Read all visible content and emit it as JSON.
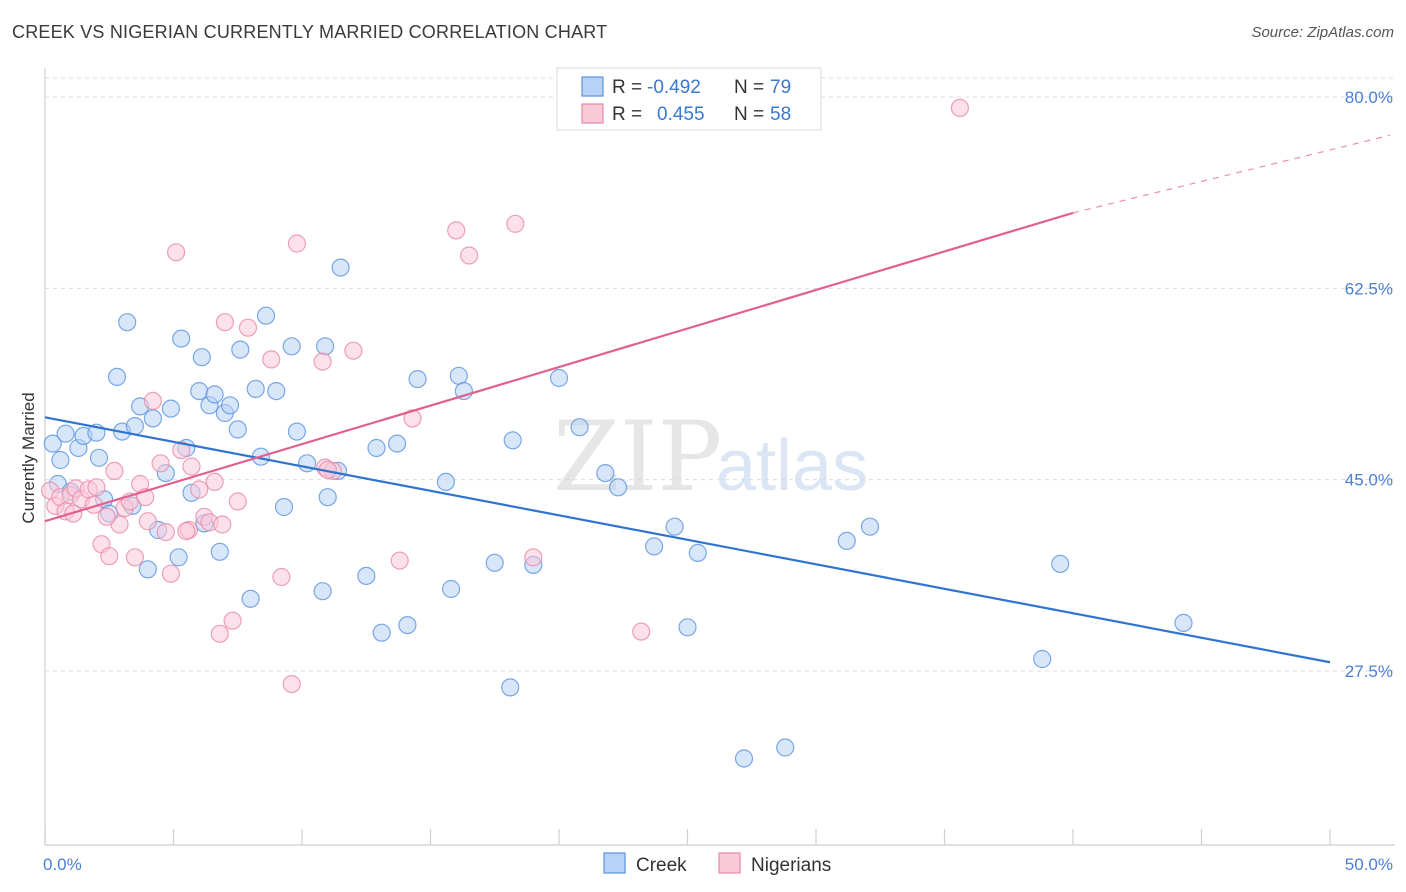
{
  "title": "CREEK VS NIGERIAN CURRENTLY MARRIED CORRELATION CHART",
  "source": "Source: ZipAtlas.com",
  "watermark": {
    "zip": "ZIP",
    "atlas": "atlas"
  },
  "colors": {
    "creek": "#5b93e0",
    "creek_fill": "#b8d2f5",
    "creek_line": "#2f74d0",
    "nigerian": "#e88aa8",
    "nigerian_fill": "#f9c9d8",
    "nigerian_line": "#e0618d"
  },
  "legend": {
    "rows": [
      {
        "r_label": "R = ",
        "r_value": "-0.492",
        "n_label": "N = ",
        "n_value": "79"
      },
      {
        "r_label": "R = ",
        "r_value": "0.455",
        "n_label": "N = ",
        "n_value": "58"
      }
    ]
  },
  "bottom_legend": [
    {
      "label": "Creek"
    },
    {
      "label": "Nigerians"
    }
  ],
  "chart_data": {
    "type": "scatter",
    "ylabel": "Currently Married",
    "xlabel": "",
    "xlim": [
      0,
      50
    ],
    "ylim": [
      10,
      82
    ],
    "x_tick_labels": [
      {
        "value": 0,
        "label": "0.0%"
      },
      {
        "value": 50,
        "label": "50.0%"
      }
    ],
    "y_tick_labels": [
      {
        "value": 27.5,
        "label": "27.5%"
      },
      {
        "value": 45.0,
        "label": "45.0%"
      },
      {
        "value": 62.5,
        "label": "62.5%"
      },
      {
        "value": 80.0,
        "label": "80.0%"
      }
    ],
    "series": [
      {
        "name": "Creek",
        "r": -0.492,
        "n": 79,
        "trend": {
          "x0": 0,
          "y0": 50.7,
          "x1": 50,
          "y1": 28.3
        },
        "points": [
          [
            0.3,
            48.3
          ],
          [
            0.6,
            46.8
          ],
          [
            0.8,
            49.2
          ],
          [
            1.3,
            47.9
          ],
          [
            1.5,
            49.0
          ],
          [
            2.0,
            49.3
          ],
          [
            2.1,
            47.0
          ],
          [
            2.3,
            43.2
          ],
          [
            2.5,
            41.9
          ],
          [
            2.8,
            54.4
          ],
          [
            3.0,
            49.4
          ],
          [
            3.2,
            59.4
          ],
          [
            3.5,
            49.9
          ],
          [
            3.7,
            51.7
          ],
          [
            4.0,
            36.8
          ],
          [
            4.2,
            50.6
          ],
          [
            4.4,
            40.4
          ],
          [
            4.7,
            45.6
          ],
          [
            4.9,
            51.5
          ],
          [
            5.2,
            37.9
          ],
          [
            5.3,
            57.9
          ],
          [
            5.5,
            47.9
          ],
          [
            5.7,
            43.8
          ],
          [
            6.0,
            53.1
          ],
          [
            6.1,
            56.2
          ],
          [
            6.4,
            51.8
          ],
          [
            6.6,
            52.8
          ],
          [
            6.8,
            38.4
          ],
          [
            7.0,
            51.1
          ],
          [
            7.2,
            51.8
          ],
          [
            7.5,
            49.6
          ],
          [
            7.6,
            56.9
          ],
          [
            8.0,
            34.1
          ],
          [
            8.2,
            53.3
          ],
          [
            8.4,
            47.1
          ],
          [
            8.6,
            60.0
          ],
          [
            9.0,
            53.1
          ],
          [
            9.6,
            57.2
          ],
          [
            9.8,
            49.4
          ],
          [
            10.2,
            46.5
          ],
          [
            10.8,
            34.8
          ],
          [
            10.9,
            57.2
          ],
          [
            11.0,
            43.4
          ],
          [
            11.4,
            45.8
          ],
          [
            11.5,
            64.4
          ],
          [
            12.5,
            36.2
          ],
          [
            12.9,
            47.9
          ],
          [
            13.1,
            31.0
          ],
          [
            13.7,
            48.3
          ],
          [
            14.1,
            31.7
          ],
          [
            14.5,
            54.2
          ],
          [
            15.6,
            44.8
          ],
          [
            15.8,
            35.0
          ],
          [
            16.1,
            54.5
          ],
          [
            16.3,
            53.1
          ],
          [
            17.5,
            37.4
          ],
          [
            18.1,
            26.0
          ],
          [
            18.2,
            48.6
          ],
          [
            19.0,
            37.2
          ],
          [
            20.0,
            54.3
          ],
          [
            20.8,
            49.8
          ],
          [
            21.8,
            45.6
          ],
          [
            22.3,
            44.3
          ],
          [
            23.7,
            38.9
          ],
          [
            24.5,
            40.7
          ],
          [
            25.0,
            31.5
          ],
          [
            25.4,
            38.3
          ],
          [
            27.2,
            19.5
          ],
          [
            28.8,
            20.5
          ],
          [
            31.2,
            39.4
          ],
          [
            32.1,
            40.7
          ],
          [
            38.8,
            28.6
          ],
          [
            39.5,
            37.3
          ],
          [
            44.3,
            31.9
          ],
          [
            0.5,
            44.6
          ],
          [
            1.0,
            43.9
          ],
          [
            3.4,
            42.6
          ],
          [
            6.2,
            41.0
          ],
          [
            9.3,
            42.5
          ]
        ]
      },
      {
        "name": "Nigerians",
        "r": 0.455,
        "n": 58,
        "trend": {
          "x0": 0,
          "y0": 41.2,
          "x1": 40,
          "y1": 69.4,
          "dash_to_x": 50,
          "dash_to_y": 76.5
        },
        "points": [
          [
            0.2,
            44.0
          ],
          [
            0.4,
            42.6
          ],
          [
            0.6,
            43.4
          ],
          [
            0.8,
            42.1
          ],
          [
            1.0,
            43.6
          ],
          [
            1.2,
            44.2
          ],
          [
            1.4,
            43.2
          ],
          [
            1.7,
            44.1
          ],
          [
            1.9,
            42.7
          ],
          [
            2.0,
            44.3
          ],
          [
            2.2,
            39.1
          ],
          [
            2.5,
            38.0
          ],
          [
            2.7,
            45.8
          ],
          [
            2.9,
            40.9
          ],
          [
            3.1,
            42.4
          ],
          [
            3.3,
            43.0
          ],
          [
            3.5,
            37.9
          ],
          [
            3.7,
            44.6
          ],
          [
            3.9,
            43.4
          ],
          [
            4.0,
            41.2
          ],
          [
            4.2,
            52.2
          ],
          [
            4.5,
            46.5
          ],
          [
            4.7,
            40.2
          ],
          [
            4.9,
            36.4
          ],
          [
            5.1,
            65.8
          ],
          [
            5.3,
            47.7
          ],
          [
            5.6,
            40.4
          ],
          [
            5.7,
            46.2
          ],
          [
            6.0,
            44.1
          ],
          [
            6.2,
            41.6
          ],
          [
            6.4,
            41.1
          ],
          [
            6.6,
            44.8
          ],
          [
            6.8,
            30.9
          ],
          [
            7.0,
            59.4
          ],
          [
            7.3,
            32.1
          ],
          [
            7.5,
            43.0
          ],
          [
            7.9,
            58.9
          ],
          [
            8.8,
            56.0
          ],
          [
            9.2,
            36.1
          ],
          [
            9.6,
            26.3
          ],
          [
            9.8,
            66.6
          ],
          [
            10.8,
            55.8
          ],
          [
            10.9,
            46.1
          ],
          [
            11.2,
            45.8
          ],
          [
            12.0,
            56.8
          ],
          [
            13.8,
            37.6
          ],
          [
            14.3,
            50.6
          ],
          [
            16.0,
            67.8
          ],
          [
            16.5,
            65.5
          ],
          [
            18.3,
            68.4
          ],
          [
            19.0,
            37.9
          ],
          [
            23.2,
            31.1
          ],
          [
            35.6,
            79.0
          ],
          [
            1.1,
            41.9
          ],
          [
            2.4,
            41.6
          ],
          [
            5.5,
            40.3
          ],
          [
            6.9,
            40.9
          ],
          [
            11.0,
            45.9
          ]
        ]
      }
    ]
  }
}
